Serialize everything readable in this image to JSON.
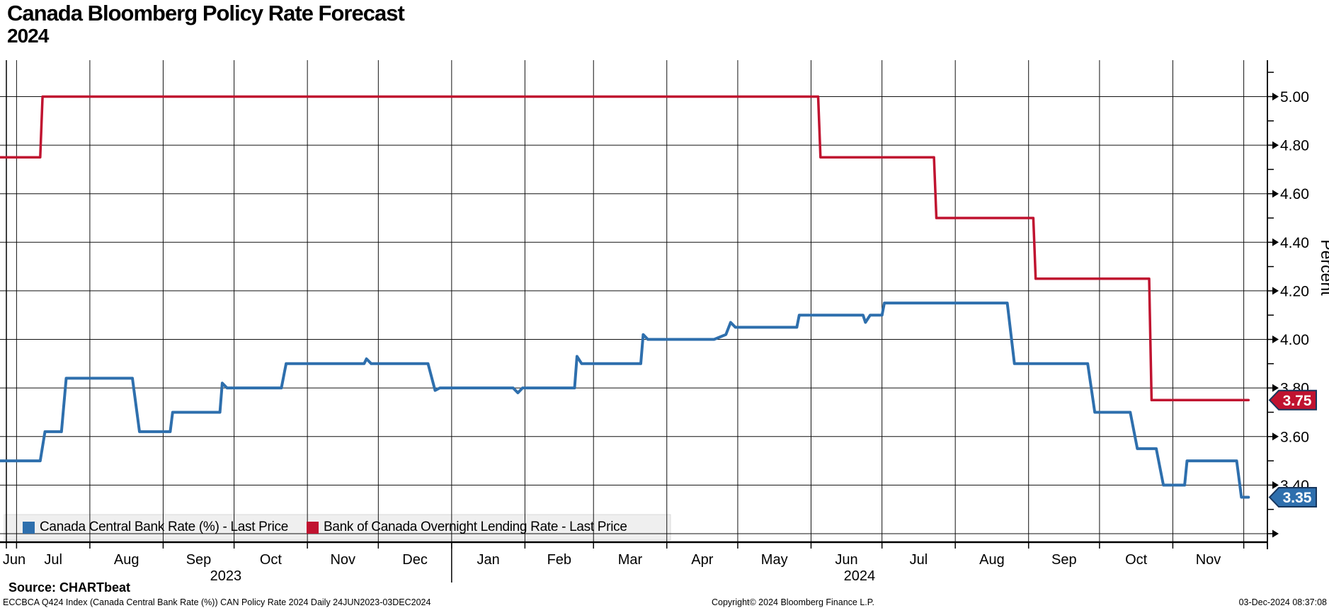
{
  "header": {
    "title": "Canada Bloomberg Policy Rate Forecast",
    "subtitle": "2024"
  },
  "legend": {
    "items": [
      {
        "label": "Canada Central Bank Rate (%) - Last Price",
        "color": "#2e6fad"
      },
      {
        "label": "Bank of Canada Overnight Lending Rate - Last Price",
        "color": "#c01330"
      }
    ]
  },
  "footer": {
    "source": "Source: CHARTbeat",
    "index_line": "ECCBCA Q424 Index (Canada Central Bank Rate (%)) CAN Policy Rate 2024  Daily 24JUN2023-03DEC2024",
    "copyright": "Copyright© 2024 Bloomberg Finance L.P.",
    "timestamp": "03-Dec-2024 08:37:08"
  },
  "colors": {
    "forecast_blue": "#2e6fad",
    "overnight_red": "#c01330",
    "tag_border": "#17365d",
    "grid": "#111111",
    "legend_bg": "#efefef",
    "legend_border": "#d9d9d9"
  },
  "chart_data": {
    "type": "line",
    "title": "Canada Bloomberg Policy Rate Forecast 2024",
    "xlabel": "",
    "ylabel": "Percent",
    "ylim": [
      3.165,
      5.15
    ],
    "xlim": [
      "2023-06-24",
      "2024-12-11"
    ],
    "grid": "on",
    "legend_position": "bottom-left",
    "y_ticks": {
      "labeled": [
        5.0,
        4.8,
        4.6,
        4.4,
        4.2,
        4.0,
        3.8,
        3.6,
        3.4
      ],
      "arrow_only": [
        3.2
      ],
      "minor": [
        5.1,
        4.9,
        4.7,
        4.5,
        4.3,
        4.1,
        3.9,
        3.7,
        3.5,
        3.3
      ],
      "gridlines": [
        5.0,
        4.8,
        4.6,
        4.4,
        4.2,
        4.0,
        3.8,
        3.6,
        3.4,
        3.2
      ]
    },
    "x_month_ticks": [
      "2023-07-01",
      "2023-08-01",
      "2023-09-01",
      "2023-10-01",
      "2023-11-01",
      "2023-12-01",
      "2024-01-01",
      "2024-02-01",
      "2024-03-01",
      "2024-04-01",
      "2024-05-01",
      "2024-06-01",
      "2024-07-01",
      "2024-08-01",
      "2024-09-01",
      "2024-10-01",
      "2024-11-01",
      "2024-12-01"
    ],
    "x_month_labels": [
      {
        "label": "Jun",
        "start": "2023-06-24",
        "end": "2023-07-01"
      },
      {
        "label": "Jul",
        "start": "2023-07-01",
        "end": "2023-08-01"
      },
      {
        "label": "Aug",
        "start": "2023-08-01",
        "end": "2023-09-01"
      },
      {
        "label": "Sep",
        "start": "2023-09-01",
        "end": "2023-10-01"
      },
      {
        "label": "Oct",
        "start": "2023-10-01",
        "end": "2023-11-01"
      },
      {
        "label": "Nov",
        "start": "2023-11-01",
        "end": "2023-12-01"
      },
      {
        "label": "Dec",
        "start": "2023-12-01",
        "end": "2024-01-01"
      },
      {
        "label": "Jan",
        "start": "2024-01-01",
        "end": "2024-02-01"
      },
      {
        "label": "Feb",
        "start": "2024-02-01",
        "end": "2024-03-01"
      },
      {
        "label": "Mar",
        "start": "2024-03-01",
        "end": "2024-04-01"
      },
      {
        "label": "Apr",
        "start": "2024-04-01",
        "end": "2024-05-01"
      },
      {
        "label": "May",
        "start": "2024-05-01",
        "end": "2024-06-01"
      },
      {
        "label": "Jun",
        "start": "2024-06-01",
        "end": "2024-07-01"
      },
      {
        "label": "Jul",
        "start": "2024-07-01",
        "end": "2024-08-01"
      },
      {
        "label": "Aug",
        "start": "2024-08-01",
        "end": "2024-09-01"
      },
      {
        "label": "Sep",
        "start": "2024-09-01",
        "end": "2024-10-01"
      },
      {
        "label": "Oct",
        "start": "2024-10-01",
        "end": "2024-11-01"
      },
      {
        "label": "Nov",
        "start": "2024-11-01",
        "end": "2024-12-01"
      }
    ],
    "year_labels": [
      {
        "label": "2023",
        "start": "2023-06-24",
        "end": "2024-01-01"
      },
      {
        "label": "2024",
        "start": "2024-01-01",
        "end": "2024-12-11"
      }
    ],
    "year_separator": "2024-01-01",
    "series": [
      {
        "name": "Canada Central Bank Rate (%) - Last Price",
        "color": "#2e6fad",
        "width": 4,
        "last_price": "3.35",
        "points": [
          [
            "2023-06-24",
            3.5
          ],
          [
            "2023-07-11",
            3.5
          ],
          [
            "2023-07-13",
            3.62
          ],
          [
            "2023-07-20",
            3.62
          ],
          [
            "2023-07-22",
            3.84
          ],
          [
            "2023-08-19",
            3.84
          ],
          [
            "2023-08-22",
            3.62
          ],
          [
            "2023-09-04",
            3.62
          ],
          [
            "2023-09-05",
            3.7
          ],
          [
            "2023-09-25",
            3.7
          ],
          [
            "2023-09-26",
            3.82
          ],
          [
            "2023-09-28",
            3.8
          ],
          [
            "2023-10-21",
            3.8
          ],
          [
            "2023-10-23",
            3.9
          ],
          [
            "2023-11-25",
            3.9
          ],
          [
            "2023-11-26",
            3.92
          ],
          [
            "2023-11-28",
            3.9
          ],
          [
            "2023-12-22",
            3.9
          ],
          [
            "2023-12-25",
            3.79
          ],
          [
            "2023-12-27",
            3.8
          ],
          [
            "2024-01-27",
            3.8
          ],
          [
            "2024-01-29",
            3.78
          ],
          [
            "2024-01-31",
            3.8
          ],
          [
            "2024-02-22",
            3.8
          ],
          [
            "2024-02-23",
            3.93
          ],
          [
            "2024-02-25",
            3.9
          ],
          [
            "2024-03-21",
            3.9
          ],
          [
            "2024-03-22",
            4.02
          ],
          [
            "2024-03-24",
            4.0
          ],
          [
            "2024-04-21",
            4.0
          ],
          [
            "2024-04-26",
            4.02
          ],
          [
            "2024-04-28",
            4.07
          ],
          [
            "2024-04-30",
            4.05
          ],
          [
            "2024-05-26",
            4.05
          ],
          [
            "2024-05-27",
            4.1
          ],
          [
            "2024-06-23",
            4.1
          ],
          [
            "2024-06-24",
            4.07
          ],
          [
            "2024-06-26",
            4.1
          ],
          [
            "2024-07-01",
            4.1
          ],
          [
            "2024-07-02",
            4.15
          ],
          [
            "2024-08-23",
            4.15
          ],
          [
            "2024-08-26",
            3.9
          ],
          [
            "2024-09-26",
            3.9
          ],
          [
            "2024-09-29",
            3.7
          ],
          [
            "2024-10-14",
            3.7
          ],
          [
            "2024-10-17",
            3.55
          ],
          [
            "2024-10-25",
            3.55
          ],
          [
            "2024-10-28",
            3.4
          ],
          [
            "2024-11-06",
            3.4
          ],
          [
            "2024-11-07",
            3.5
          ],
          [
            "2024-11-28",
            3.5
          ],
          [
            "2024-11-30",
            3.35
          ],
          [
            "2024-12-03",
            3.35
          ]
        ]
      },
      {
        "name": "Bank of Canada Overnight Lending Rate - Last Price",
        "color": "#c01330",
        "width": 3.5,
        "last_price": "3.75",
        "points": [
          [
            "2023-06-24",
            4.75
          ],
          [
            "2023-07-11",
            4.75
          ],
          [
            "2023-07-12",
            5.0
          ],
          [
            "2024-06-04",
            5.0
          ],
          [
            "2024-06-05",
            4.75
          ],
          [
            "2024-07-23",
            4.75
          ],
          [
            "2024-07-24",
            4.5
          ],
          [
            "2024-09-03",
            4.5
          ],
          [
            "2024-09-04",
            4.25
          ],
          [
            "2024-10-22",
            4.25
          ],
          [
            "2024-10-23",
            3.75
          ],
          [
            "2024-12-03",
            3.75
          ]
        ]
      }
    ],
    "last_price_tags": [
      {
        "value": "3.75",
        "fill": "#c01330"
      },
      {
        "value": "3.35",
        "fill": "#2e6fad"
      }
    ]
  }
}
